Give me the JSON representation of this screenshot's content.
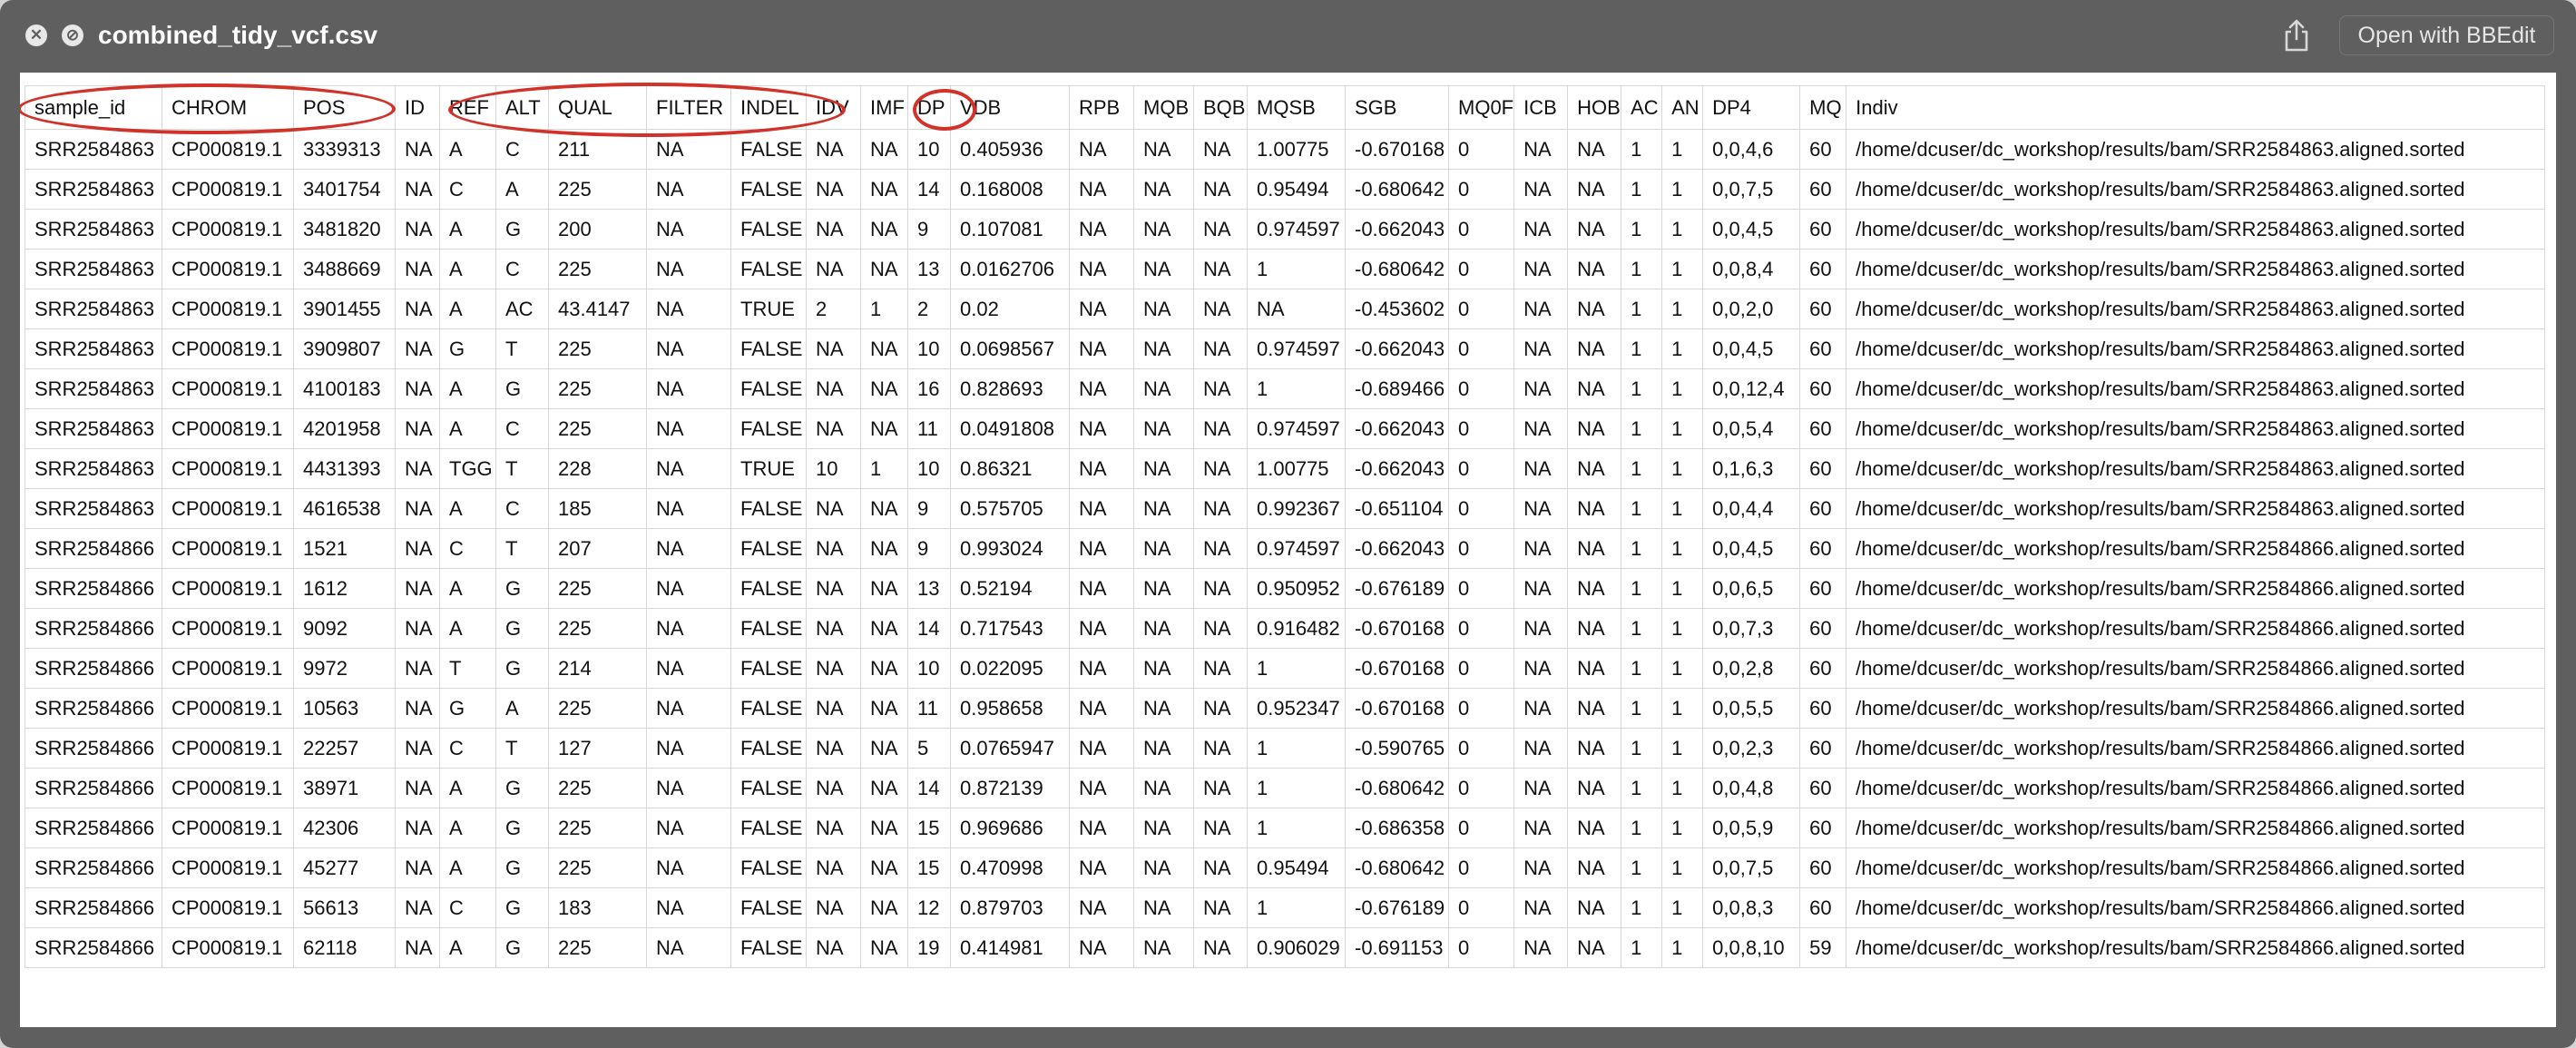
{
  "window": {
    "title": "combined_tidy_vcf.csv",
    "close_glyph": "✕",
    "stop_glyph": "⊘",
    "open_with_label": "Open with BBEdit",
    "share_icon": "share-icon"
  },
  "annotation_color": "#d1322a",
  "table": {
    "columns": [
      "sample_id",
      "CHROM",
      "POS",
      "ID",
      "REF",
      "ALT",
      "QUAL",
      "FILTER",
      "INDEL",
      "IDV",
      "IMF",
      "DP",
      "VDB",
      "RPB",
      "MQB",
      "BQB",
      "MQSB",
      "SGB",
      "MQ0F",
      "ICB",
      "HOB",
      "AC",
      "AN",
      "DP4",
      "MQ",
      "Indiv"
    ],
    "rows": [
      [
        "SRR2584863",
        "CP000819.1",
        "3339313",
        "NA",
        "A",
        "C",
        "211",
        "NA",
        "FALSE",
        "NA",
        "NA",
        "10",
        "0.405936",
        "NA",
        "NA",
        "NA",
        "1.00775",
        "-0.670168",
        "0",
        "NA",
        "NA",
        "1",
        "1",
        "0,0,4,6",
        "60",
        "/home/dcuser/dc_workshop/results/bam/SRR2584863.aligned.sorted"
      ],
      [
        "SRR2584863",
        "CP000819.1",
        "3401754",
        "NA",
        "C",
        "A",
        "225",
        "NA",
        "FALSE",
        "NA",
        "NA",
        "14",
        "0.168008",
        "NA",
        "NA",
        "NA",
        "0.95494",
        "-0.680642",
        "0",
        "NA",
        "NA",
        "1",
        "1",
        "0,0,7,5",
        "60",
        "/home/dcuser/dc_workshop/results/bam/SRR2584863.aligned.sorted"
      ],
      [
        "SRR2584863",
        "CP000819.1",
        "3481820",
        "NA",
        "A",
        "G",
        "200",
        "NA",
        "FALSE",
        "NA",
        "NA",
        "9",
        "0.107081",
        "NA",
        "NA",
        "NA",
        "0.974597",
        "-0.662043",
        "0",
        "NA",
        "NA",
        "1",
        "1",
        "0,0,4,5",
        "60",
        "/home/dcuser/dc_workshop/results/bam/SRR2584863.aligned.sorted"
      ],
      [
        "SRR2584863",
        "CP000819.1",
        "3488669",
        "NA",
        "A",
        "C",
        "225",
        "NA",
        "FALSE",
        "NA",
        "NA",
        "13",
        "0.0162706",
        "NA",
        "NA",
        "NA",
        "1",
        "-0.680642",
        "0",
        "NA",
        "NA",
        "1",
        "1",
        "0,0,8,4",
        "60",
        "/home/dcuser/dc_workshop/results/bam/SRR2584863.aligned.sorted"
      ],
      [
        "SRR2584863",
        "CP000819.1",
        "3901455",
        "NA",
        "A",
        "AC",
        "43.4147",
        "NA",
        "TRUE",
        "2",
        "1",
        "2",
        "0.02",
        "NA",
        "NA",
        "NA",
        "NA",
        "-0.453602",
        "0",
        "NA",
        "NA",
        "1",
        "1",
        "0,0,2,0",
        "60",
        "/home/dcuser/dc_workshop/results/bam/SRR2584863.aligned.sorted"
      ],
      [
        "SRR2584863",
        "CP000819.1",
        "3909807",
        "NA",
        "G",
        "T",
        "225",
        "NA",
        "FALSE",
        "NA",
        "NA",
        "10",
        "0.0698567",
        "NA",
        "NA",
        "NA",
        "0.974597",
        "-0.662043",
        "0",
        "NA",
        "NA",
        "1",
        "1",
        "0,0,4,5",
        "60",
        "/home/dcuser/dc_workshop/results/bam/SRR2584863.aligned.sorted"
      ],
      [
        "SRR2584863",
        "CP000819.1",
        "4100183",
        "NA",
        "A",
        "G",
        "225",
        "NA",
        "FALSE",
        "NA",
        "NA",
        "16",
        "0.828693",
        "NA",
        "NA",
        "NA",
        "1",
        "-0.689466",
        "0",
        "NA",
        "NA",
        "1",
        "1",
        "0,0,12,4",
        "60",
        "/home/dcuser/dc_workshop/results/bam/SRR2584863.aligned.sorted"
      ],
      [
        "SRR2584863",
        "CP000819.1",
        "4201958",
        "NA",
        "A",
        "C",
        "225",
        "NA",
        "FALSE",
        "NA",
        "NA",
        "11",
        "0.0491808",
        "NA",
        "NA",
        "NA",
        "0.974597",
        "-0.662043",
        "0",
        "NA",
        "NA",
        "1",
        "1",
        "0,0,5,4",
        "60",
        "/home/dcuser/dc_workshop/results/bam/SRR2584863.aligned.sorted"
      ],
      [
        "SRR2584863",
        "CP000819.1",
        "4431393",
        "NA",
        "TGG",
        "T",
        "228",
        "NA",
        "TRUE",
        "10",
        "1",
        "10",
        "0.86321",
        "NA",
        "NA",
        "NA",
        "1.00775",
        "-0.662043",
        "0",
        "NA",
        "NA",
        "1",
        "1",
        "0,1,6,3",
        "60",
        "/home/dcuser/dc_workshop/results/bam/SRR2584863.aligned.sorted"
      ],
      [
        "SRR2584863",
        "CP000819.1",
        "4616538",
        "NA",
        "A",
        "C",
        "185",
        "NA",
        "FALSE",
        "NA",
        "NA",
        "9",
        "0.575705",
        "NA",
        "NA",
        "NA",
        "0.992367",
        "-0.651104",
        "0",
        "NA",
        "NA",
        "1",
        "1",
        "0,0,4,4",
        "60",
        "/home/dcuser/dc_workshop/results/bam/SRR2584863.aligned.sorted"
      ],
      [
        "SRR2584866",
        "CP000819.1",
        "1521",
        "NA",
        "C",
        "T",
        "207",
        "NA",
        "FALSE",
        "NA",
        "NA",
        "9",
        "0.993024",
        "NA",
        "NA",
        "NA",
        "0.974597",
        "-0.662043",
        "0",
        "NA",
        "NA",
        "1",
        "1",
        "0,0,4,5",
        "60",
        "/home/dcuser/dc_workshop/results/bam/SRR2584866.aligned.sorted"
      ],
      [
        "SRR2584866",
        "CP000819.1",
        "1612",
        "NA",
        "A",
        "G",
        "225",
        "NA",
        "FALSE",
        "NA",
        "NA",
        "13",
        "0.52194",
        "NA",
        "NA",
        "NA",
        "0.950952",
        "-0.676189",
        "0",
        "NA",
        "NA",
        "1",
        "1",
        "0,0,6,5",
        "60",
        "/home/dcuser/dc_workshop/results/bam/SRR2584866.aligned.sorted"
      ],
      [
        "SRR2584866",
        "CP000819.1",
        "9092",
        "NA",
        "A",
        "G",
        "225",
        "NA",
        "FALSE",
        "NA",
        "NA",
        "14",
        "0.717543",
        "NA",
        "NA",
        "NA",
        "0.916482",
        "-0.670168",
        "0",
        "NA",
        "NA",
        "1",
        "1",
        "0,0,7,3",
        "60",
        "/home/dcuser/dc_workshop/results/bam/SRR2584866.aligned.sorted"
      ],
      [
        "SRR2584866",
        "CP000819.1",
        "9972",
        "NA",
        "T",
        "G",
        "214",
        "NA",
        "FALSE",
        "NA",
        "NA",
        "10",
        "0.022095",
        "NA",
        "NA",
        "NA",
        "1",
        "-0.670168",
        "0",
        "NA",
        "NA",
        "1",
        "1",
        "0,0,2,8",
        "60",
        "/home/dcuser/dc_workshop/results/bam/SRR2584866.aligned.sorted"
      ],
      [
        "SRR2584866",
        "CP000819.1",
        "10563",
        "NA",
        "G",
        "A",
        "225",
        "NA",
        "FALSE",
        "NA",
        "NA",
        "11",
        "0.958658",
        "NA",
        "NA",
        "NA",
        "0.952347",
        "-0.670168",
        "0",
        "NA",
        "NA",
        "1",
        "1",
        "0,0,5,5",
        "60",
        "/home/dcuser/dc_workshop/results/bam/SRR2584866.aligned.sorted"
      ],
      [
        "SRR2584866",
        "CP000819.1",
        "22257",
        "NA",
        "C",
        "T",
        "127",
        "NA",
        "FALSE",
        "NA",
        "NA",
        "5",
        "0.0765947",
        "NA",
        "NA",
        "NA",
        "1",
        "-0.590765",
        "0",
        "NA",
        "NA",
        "1",
        "1",
        "0,0,2,3",
        "60",
        "/home/dcuser/dc_workshop/results/bam/SRR2584866.aligned.sorted"
      ],
      [
        "SRR2584866",
        "CP000819.1",
        "38971",
        "NA",
        "A",
        "G",
        "225",
        "NA",
        "FALSE",
        "NA",
        "NA",
        "14",
        "0.872139",
        "NA",
        "NA",
        "NA",
        "1",
        "-0.680642",
        "0",
        "NA",
        "NA",
        "1",
        "1",
        "0,0,4,8",
        "60",
        "/home/dcuser/dc_workshop/results/bam/SRR2584866.aligned.sorted"
      ],
      [
        "SRR2584866",
        "CP000819.1",
        "42306",
        "NA",
        "A",
        "G",
        "225",
        "NA",
        "FALSE",
        "NA",
        "NA",
        "15",
        "0.969686",
        "NA",
        "NA",
        "NA",
        "1",
        "-0.686358",
        "0",
        "NA",
        "NA",
        "1",
        "1",
        "0,0,5,9",
        "60",
        "/home/dcuser/dc_workshop/results/bam/SRR2584866.aligned.sorted"
      ],
      [
        "SRR2584866",
        "CP000819.1",
        "45277",
        "NA",
        "A",
        "G",
        "225",
        "NA",
        "FALSE",
        "NA",
        "NA",
        "15",
        "0.470998",
        "NA",
        "NA",
        "NA",
        "0.95494",
        "-0.680642",
        "0",
        "NA",
        "NA",
        "1",
        "1",
        "0,0,7,5",
        "60",
        "/home/dcuser/dc_workshop/results/bam/SRR2584866.aligned.sorted"
      ],
      [
        "SRR2584866",
        "CP000819.1",
        "56613",
        "NA",
        "C",
        "G",
        "183",
        "NA",
        "FALSE",
        "NA",
        "NA",
        "12",
        "0.879703",
        "NA",
        "NA",
        "NA",
        "1",
        "-0.676189",
        "0",
        "NA",
        "NA",
        "1",
        "1",
        "0,0,8,3",
        "60",
        "/home/dcuser/dc_workshop/results/bam/SRR2584866.aligned.sorted"
      ],
      [
        "SRR2584866",
        "CP000819.1",
        "62118",
        "NA",
        "A",
        "G",
        "225",
        "NA",
        "FALSE",
        "NA",
        "NA",
        "19",
        "0.414981",
        "NA",
        "NA",
        "NA",
        "0.906029",
        "-0.691153",
        "0",
        "NA",
        "NA",
        "1",
        "1",
        "0,0,8,10",
        "59",
        "/home/dcuser/dc_workshop/results/bam/SRR2584866.aligned.sorted"
      ]
    ]
  }
}
